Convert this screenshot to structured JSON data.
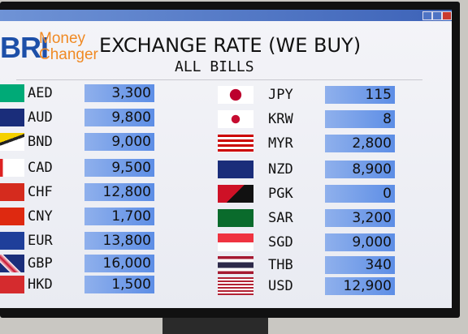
{
  "header": {
    "logo": "BRI",
    "brand_line1": "Money",
    "brand_line2": "Changer",
    "title": "EXCHANGE RATE (WE BUY)",
    "subtitle": "ALL BILLS"
  },
  "table": {
    "left": [
      [
        "AED",
        "3,300"
      ],
      [
        "AUD",
        "9,800"
      ],
      [
        "BND",
        "9,000"
      ],
      [
        "CAD",
        "9,500"
      ],
      [
        "CHF",
        "12,800"
      ],
      [
        "CNY",
        "1,700"
      ],
      [
        "EUR",
        "13,800"
      ],
      [
        "GBP",
        "16,000"
      ],
      [
        "HKD",
        "1,500"
      ]
    ],
    "right": [
      [
        "JPY",
        "115"
      ],
      [
        "KRW",
        "8"
      ],
      [
        "MYR",
        "2,800"
      ],
      [
        "NZD",
        "8,900"
      ],
      [
        "PGK",
        "0"
      ],
      [
        "SAR",
        "3,200"
      ],
      [
        "SGD",
        "9,000"
      ],
      [
        "THB",
        "340"
      ],
      [
        "USD",
        "12,900"
      ]
    ]
  }
}
